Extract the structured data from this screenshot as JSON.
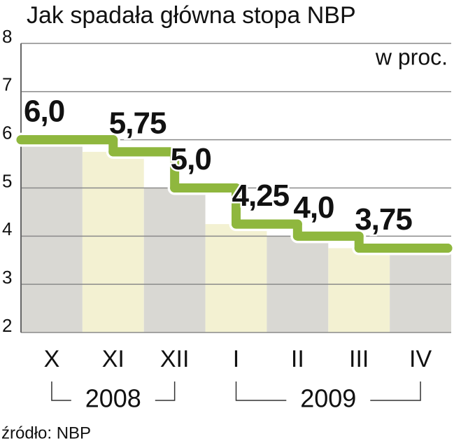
{
  "chart_data": {
    "type": "step",
    "title": "Jak spadała główna stopa NBP",
    "subtitle": "w proc.",
    "source": "źródło: NBP",
    "categories": [
      "X",
      "XI",
      "XII",
      "I",
      "II",
      "III",
      "IV"
    ],
    "groups": [
      "2008",
      "2009"
    ],
    "values": [
      6.0,
      5.75,
      5.0,
      4.25,
      4.0,
      3.75,
      3.75
    ],
    "value_labels": [
      "6,0",
      "5,75",
      "5,0",
      "4,25",
      "4,0",
      "3,75",
      null
    ],
    "color": "#8fb73e",
    "ylim": [
      2,
      8
    ],
    "yticks": [
      2,
      3,
      4,
      5,
      6,
      7,
      8
    ],
    "grid": true
  }
}
